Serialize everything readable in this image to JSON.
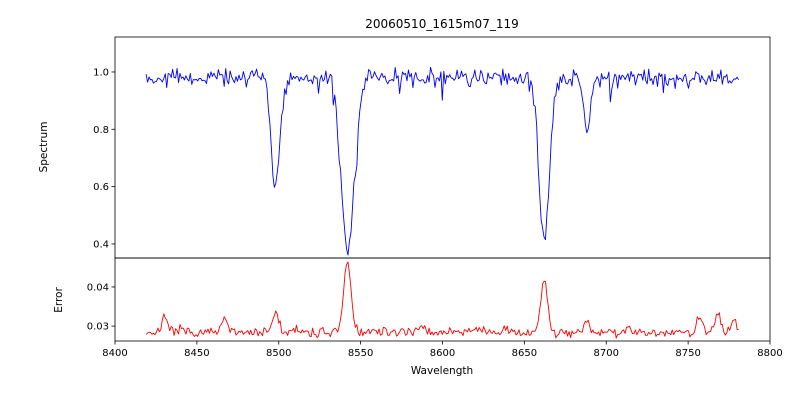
{
  "figure": {
    "title": "20060510_1615m07_119",
    "xlabel": "Wavelength"
  },
  "chart_data": [
    {
      "type": "line",
      "series_name": "spectrum",
      "ylabel": "Spectrum",
      "color": "#0000ff",
      "grid": false,
      "legend": null,
      "xlim": [
        8400,
        8800
      ],
      "ylim": [
        0.351,
        1.122
      ],
      "yticks": [
        0.4,
        0.6,
        0.8,
        1.0
      ],
      "ytick_labels": [
        "0.4",
        "0.6",
        "0.8",
        "1.0"
      ],
      "xticks": [
        8400,
        8450,
        8500,
        8550,
        8600,
        8650,
        8700,
        8750,
        8800
      ],
      "xtick_labels": [
        "8400",
        "8450",
        "8500",
        "8550",
        "8600",
        "8650",
        "8700",
        "8750",
        "8800"
      ],
      "show_xtick_labels": false,
      "x_data_range": [
        8419,
        8781
      ],
      "x_step": 0.9,
      "seed": 42,
      "continuum": 0.98,
      "noise_amplitude": 0.015,
      "dip_probability": 0.06,
      "dip_max": 0.07,
      "absorption_lines": [
        {
          "center": 8498.0,
          "depth": 0.38,
          "width": 2.6
        },
        {
          "center": 8542.1,
          "depth": 0.6,
          "width": 4.0
        },
        {
          "center": 8662.1,
          "depth": 0.57,
          "width": 3.2
        },
        {
          "center": 8688.6,
          "depth": 0.19,
          "width": 2.0
        }
      ]
    },
    {
      "type": "line",
      "series_name": "error",
      "ylabel": "Error",
      "color": "#ff0000",
      "grid": false,
      "legend": null,
      "xlim": [
        8400,
        8800
      ],
      "ylim": [
        0.0262,
        0.0474
      ],
      "yticks": [
        0.03,
        0.04
      ],
      "ytick_labels": [
        "0.03",
        "0.04"
      ],
      "xticks": [
        8400,
        8450,
        8500,
        8550,
        8600,
        8650,
        8700,
        8750,
        8800
      ],
      "xtick_labels": [
        "8400",
        "8450",
        "8500",
        "8550",
        "8600",
        "8650",
        "8700",
        "8750",
        "8800"
      ],
      "show_xtick_labels": true,
      "x_data_range": [
        8419,
        8781
      ],
      "x_step": 0.9,
      "seed": 7,
      "baseline": 0.0284,
      "noise_amplitude": 0.0006,
      "spike_probability": 0.05,
      "spike_max": 0.0015,
      "emission_peaks": [
        {
          "center": 8430,
          "height": 0.0045,
          "width": 1.5
        },
        {
          "center": 8467,
          "height": 0.0035,
          "width": 1.5
        },
        {
          "center": 8498,
          "height": 0.005,
          "width": 2.0
        },
        {
          "center": 8542,
          "height": 0.018,
          "width": 2.2
        },
        {
          "center": 8585,
          "height": 0.0012,
          "width": 2.0
        },
        {
          "center": 8620,
          "height": 0.0015,
          "width": 2.0
        },
        {
          "center": 8662,
          "height": 0.0135,
          "width": 2.0
        },
        {
          "center": 8688,
          "height": 0.003,
          "width": 1.5
        },
        {
          "center": 8713,
          "height": 0.0015,
          "width": 1.5
        },
        {
          "center": 8757,
          "height": 0.004,
          "width": 1.5
        },
        {
          "center": 8768,
          "height": 0.0055,
          "width": 1.5
        },
        {
          "center": 8778,
          "height": 0.004,
          "width": 1.5
        }
      ]
    }
  ]
}
